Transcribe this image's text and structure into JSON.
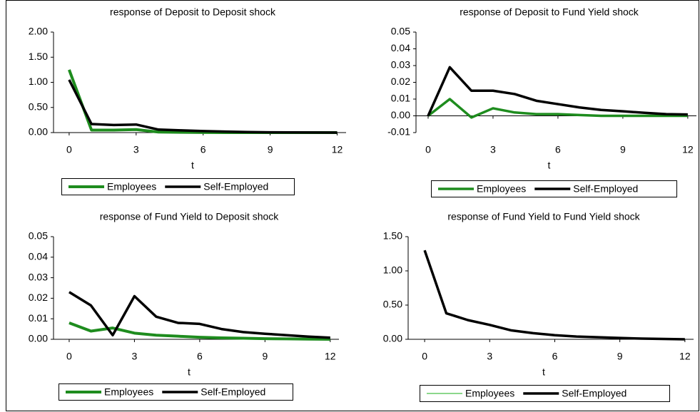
{
  "chart_data": [
    {
      "type": "line",
      "title": "response of Deposit to Deposit shock",
      "xlabel": "t",
      "x": [
        0,
        1,
        2,
        3,
        4,
        5,
        6,
        7,
        8,
        9,
        10,
        11,
        12
      ],
      "xlim": [
        -0.7,
        12.4
      ],
      "xticks": [
        0,
        3,
        6,
        9,
        12
      ],
      "ylim": [
        0,
        2
      ],
      "yticks": [
        {
          "value": 2,
          "label": "2.00"
        },
        {
          "value": 1.5,
          "label": "1.50"
        },
        {
          "value": 1,
          "label": "1.00"
        },
        {
          "value": 0.5,
          "label": "0.50"
        },
        {
          "value": 0,
          "label": "0.00"
        }
      ],
      "series": [
        {
          "name": "Employees",
          "color": "#1e8c1e",
          "width": 4,
          "values": [
            1.25,
            0.05,
            0.05,
            0.06,
            0.01,
            0.005,
            0.002,
            0,
            0,
            0,
            0,
            0,
            0
          ]
        },
        {
          "name": "Self-Employed",
          "color": "#000000",
          "width": 3.5,
          "values": [
            1.05,
            0.17,
            0.15,
            0.16,
            0.06,
            0.045,
            0.03,
            0.02,
            0.01,
            0.005,
            0.003,
            0.001,
            0
          ]
        }
      ]
    },
    {
      "type": "line",
      "title": "response of Deposit to Fund Yield shock",
      "xlabel": "t",
      "x": [
        0,
        1,
        2,
        3,
        4,
        5,
        6,
        7,
        8,
        9,
        10,
        11,
        12
      ],
      "xlim": [
        -0.56,
        12.4
      ],
      "xticks": [
        0,
        3,
        6,
        9,
        12
      ],
      "ylim": [
        -0.01,
        0.05
      ],
      "yticks": [
        0.05,
        0.04,
        0.03,
        0.02,
        0.01,
        {
          "value": 0,
          "label": "0.00"
        },
        -0.01
      ],
      "series": [
        {
          "name": "Employees",
          "color": "#1e8c1e",
          "width": 3.5,
          "values": [
            0,
            0.01,
            -0.001,
            0.0045,
            0.002,
            0.001,
            0.001,
            0.0005,
            0,
            0,
            0,
            0,
            0
          ]
        },
        {
          "name": "Self-Employed",
          "color": "#000000",
          "width": 3.5,
          "values": [
            0,
            0.029,
            0.015,
            0.015,
            0.013,
            0.009,
            0.007,
            0.005,
            0.0035,
            0.0027,
            0.0018,
            0.001,
            0.0008
          ]
        }
      ]
    },
    {
      "type": "line",
      "title": "response of Fund Yield to Deposit shock",
      "xlabel": "t",
      "x": [
        0,
        1,
        2,
        3,
        4,
        5,
        6,
        7,
        8,
        9,
        10,
        11,
        12
      ],
      "xlim": [
        -0.72,
        12.4
      ],
      "xticks": [
        0,
        3,
        6,
        9,
        12
      ],
      "ylim": [
        0,
        0.05
      ],
      "yticks": [
        0.05,
        0.04,
        0.03,
        0.02,
        0.01,
        {
          "value": 0,
          "label": "0.00"
        }
      ],
      "series": [
        {
          "name": "Employees",
          "color": "#1e8c1e",
          "width": 4,
          "values": [
            0.008,
            0.004,
            0.0055,
            0.003,
            0.002,
            0.0015,
            0.001,
            0.0007,
            0.0005,
            0.0003,
            0.0002,
            0.0001,
            0
          ]
        },
        {
          "name": "Self-Employed",
          "color": "#000000",
          "width": 3.5,
          "values": [
            0.023,
            0.0165,
            0.002,
            0.021,
            0.011,
            0.008,
            0.0075,
            0.005,
            0.0035,
            0.0027,
            0.002,
            0.0013,
            0.0008
          ]
        }
      ]
    },
    {
      "type": "line",
      "title": "response of Fund Yield to Fund Yield shock",
      "xlabel": "t",
      "x": [
        0,
        1,
        2,
        3,
        4,
        5,
        6,
        7,
        8,
        9,
        10,
        11,
        12
      ],
      "xlim": [
        -0.76,
        12.4
      ],
      "xticks": [
        0,
        3,
        6,
        9,
        12
      ],
      "ylim": [
        0,
        1.5
      ],
      "yticks": [
        {
          "value": 1.5,
          "label": "1.50"
        },
        {
          "value": 1,
          "label": "1.00"
        },
        {
          "value": 0.5,
          "label": "0.50"
        },
        {
          "value": 0,
          "label": "0.00"
        }
      ],
      "series": [
        {
          "name": "Employees",
          "color": "#66cc66",
          "width": 1.5,
          "values": [
            1.3,
            0.38,
            0.28,
            0.21,
            0.13,
            0.09,
            0.06,
            0.04,
            0.03,
            0.02,
            0.01,
            0.005,
            0
          ]
        },
        {
          "name": "Self-Employed",
          "color": "#000000",
          "width": 3.5,
          "values": [
            1.3,
            0.38,
            0.28,
            0.21,
            0.13,
            0.09,
            0.06,
            0.04,
            0.03,
            0.02,
            0.01,
            0.005,
            0
          ]
        }
      ]
    }
  ]
}
